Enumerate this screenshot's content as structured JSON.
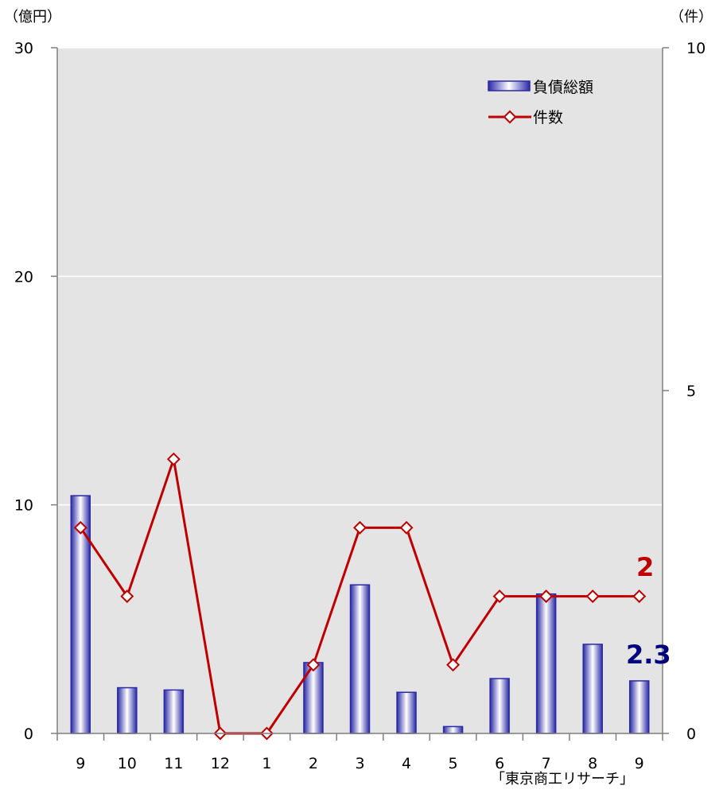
{
  "chart_data": {
    "type": "bar",
    "categories": [
      "9",
      "10",
      "11",
      "12",
      "1",
      "2",
      "3",
      "4",
      "5",
      "6",
      "7",
      "8",
      "9"
    ],
    "series": [
      {
        "name": "負債総額",
        "type": "bar",
        "axis": "left",
        "values": [
          10.4,
          2.0,
          1.9,
          0.0,
          0.0,
          3.1,
          6.5,
          1.8,
          0.3,
          2.4,
          6.1,
          3.9,
          2.3
        ]
      },
      {
        "name": "件数",
        "type": "line",
        "axis": "right",
        "values": [
          3,
          2,
          4,
          0,
          0,
          1,
          3,
          3,
          1,
          2,
          2,
          2,
          2
        ]
      }
    ],
    "left_axis": {
      "unit_label": "（億円）",
      "min": 0,
      "max": 30,
      "ticks": [
        0,
        10,
        20,
        30
      ]
    },
    "right_axis": {
      "unit_label": "（件）",
      "min": 0,
      "max": 10,
      "ticks": [
        0,
        5,
        10
      ]
    },
    "grid": true,
    "legend_position": "top-right",
    "annotations": {
      "last_count": "2",
      "last_debt": "2.3"
    },
    "source": "「東京商工リサーチ」",
    "colors": {
      "plot_bg": "#e4e4e4",
      "bar_edge": "#2a2aa6",
      "bar_center": "#ffffff",
      "line": "#c00000",
      "marker_fill": "#ffffff",
      "count_label": "#c00000",
      "debt_label": "#00007f",
      "grid": "#ffffff",
      "axis": "#7f7f7f"
    }
  }
}
